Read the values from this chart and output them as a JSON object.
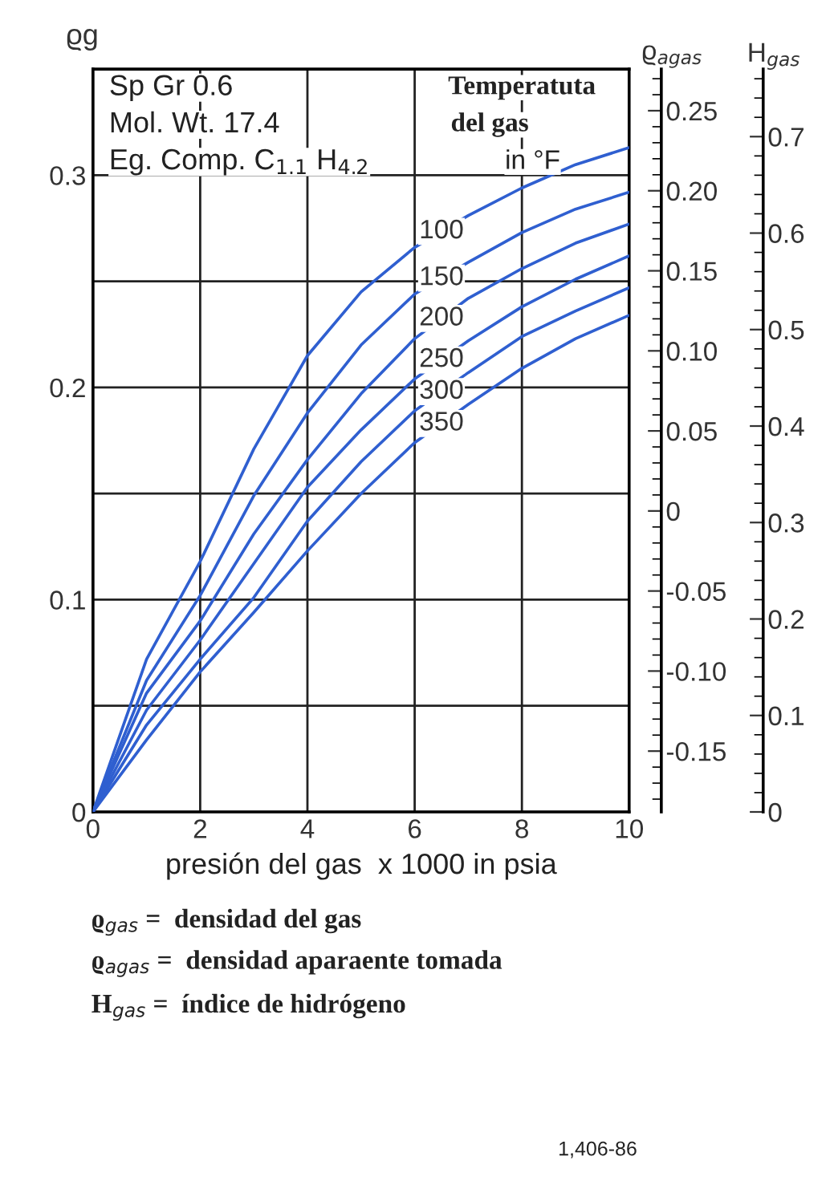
{
  "chart_data": {
    "type": "line",
    "xlabel": "presión del gas  x 1000 in psia",
    "ylabel": "ϱg",
    "y2label": "ϱ$_{agas}$",
    "y3label": "H$_{gas}$",
    "x": [
      0,
      1,
      2,
      3,
      4,
      5,
      6,
      7,
      8,
      9,
      10
    ],
    "series": [
      {
        "name": "100",
        "color": "#2f5fd0",
        "values": [
          0,
          0.072,
          0.118,
          0.171,
          0.215,
          0.245,
          0.266,
          0.281,
          0.294,
          0.305,
          0.313
        ]
      },
      {
        "name": "150",
        "color": "#2f5fd0",
        "values": [
          0,
          0.062,
          0.102,
          0.149,
          0.188,
          0.22,
          0.244,
          0.259,
          0.273,
          0.284,
          0.292
        ]
      },
      {
        "name": "200",
        "color": "#2f5fd0",
        "values": [
          0,
          0.056,
          0.09,
          0.131,
          0.166,
          0.197,
          0.223,
          0.242,
          0.256,
          0.268,
          0.277
        ]
      },
      {
        "name": "250",
        "color": "#2f5fd0",
        "values": [
          0,
          0.048,
          0.081,
          0.117,
          0.153,
          0.18,
          0.204,
          0.222,
          0.238,
          0.251,
          0.262
        ]
      },
      {
        "name": "300",
        "color": "#2f5fd0",
        "values": [
          0,
          0.041,
          0.072,
          0.101,
          0.137,
          0.165,
          0.189,
          0.207,
          0.224,
          0.236,
          0.247
        ]
      },
      {
        "name": "350",
        "color": "#2f5fd0",
        "values": [
          0,
          0.034,
          0.066,
          0.094,
          0.123,
          0.15,
          0.174,
          0.192,
          0.209,
          0.223,
          0.234
        ]
      }
    ],
    "xlim": [
      0,
      10
    ],
    "xticks": [
      0,
      2,
      4,
      6,
      8,
      10
    ],
    "ylim": [
      0,
      0.35
    ],
    "yticks": [
      0,
      {
        "value": 0.05,
        "label": null
      },
      0.1,
      {
        "value": 0.15,
        "label": null
      },
      0.2,
      {
        "value": 0.25,
        "label": null
      },
      0.3
    ],
    "y2lim": [
      -0.188,
      0.276
    ],
    "y2ticks": [
      {
        "value": -0.15,
        "label": "-0.15"
      },
      {
        "value": -0.1,
        "label": "-0.10"
      },
      {
        "value": -0.05,
        "label": "-0.05"
      },
      0,
      0.05,
      {
        "value": 0.1,
        "label": "0.10"
      },
      0.15,
      {
        "value": 0.2,
        "label": "0.20"
      },
      0.25
    ],
    "y3lim": [
      0,
      0.77
    ],
    "y3ticks": [
      0,
      0.1,
      0.2,
      0.3,
      0.4,
      0.5,
      0.6,
      0.7
    ],
    "grid": true,
    "marker": "none",
    "line_style": "solid",
    "annotations": [
      "Sp Gr 0.6",
      "Mol. Wt. 17.4",
      "Eg. Comp. C$_{1.1}$ H$_{4.2}$",
      "Temperatuta",
      "del gas",
      "in °F",
      "ϱ$_{gas}$ =  densidad del gas",
      "ϱ$_{agas}$ =  densidad aparaente tomada",
      "H$_{gas}$ =  índice de hidrógeno",
      "1,406-86"
    ]
  }
}
